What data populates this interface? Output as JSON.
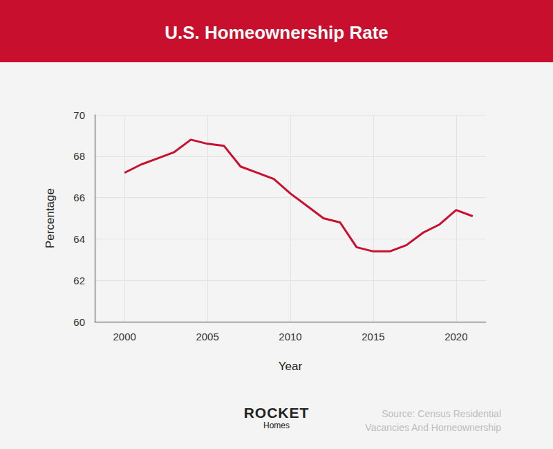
{
  "chart_data": {
    "type": "line",
    "title": "U.S. Homeownership Rate",
    "x_label": "Year",
    "y_label": "Percentage",
    "x": [
      2000,
      2001,
      2002,
      2003,
      2004,
      2005,
      2006,
      2007,
      2008,
      2009,
      2010,
      2011,
      2012,
      2013,
      2014,
      2015,
      2016,
      2017,
      2018,
      2019,
      2020,
      2021
    ],
    "values": [
      67.2,
      67.6,
      67.9,
      68.2,
      68.8,
      68.6,
      68.5,
      67.5,
      67.2,
      66.9,
      66.2,
      65.6,
      65.0,
      64.8,
      63.6,
      63.4,
      63.4,
      63.7,
      64.3,
      64.7,
      65.4,
      65.1
    ],
    "color": "#c8102e",
    "xlim": [
      1998.2,
      2021.8
    ],
    "xticks": [
      2000,
      2005,
      2010,
      2015,
      2020
    ],
    "ylim": [
      60,
      70
    ],
    "yticks": [
      60,
      62,
      64,
      66,
      68,
      70
    ],
    "grid": true
  },
  "footer": {
    "logo": "ROCKET",
    "logo_sub": "Homes",
    "source": "Source: Census Residential Vacancies And Homeownership"
  }
}
